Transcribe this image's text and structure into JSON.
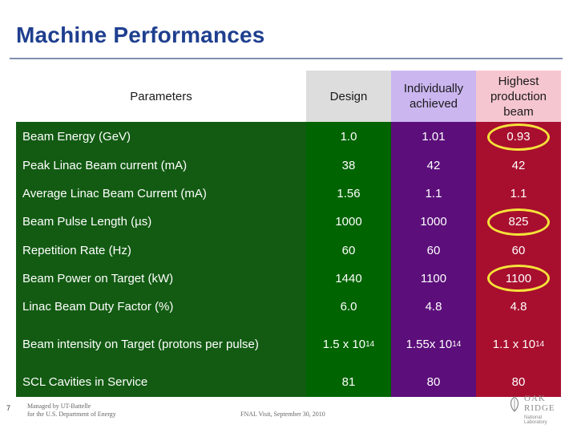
{
  "slide": {
    "title": "Machine Performances",
    "page_number": "7"
  },
  "table": {
    "headers": {
      "parameters": "Parameters",
      "design": "Design",
      "individually": "Individually achieved",
      "highest": "Highest production beam"
    },
    "rows": [
      {
        "param": "Beam Energy (GeV)",
        "design": "1.0",
        "individually": "1.01",
        "highest": "0.93",
        "highlighted": true
      },
      {
        "param": "Peak Linac Beam current (mA)",
        "design": "38",
        "individually": "42",
        "highest": "42",
        "highlighted": false
      },
      {
        "param": "Average Linac Beam Current (mA)",
        "design": "1.56",
        "individually": "1.1",
        "highest": "1.1",
        "highlighted": false
      },
      {
        "param": "Beam Pulse Length (µs)",
        "design": "1000",
        "individually": "1000",
        "highest": "825",
        "highlighted": true
      },
      {
        "param": "Repetition Rate (Hz)",
        "design": "60",
        "individually": "60",
        "highest": "60",
        "highlighted": false
      },
      {
        "param": "Beam Power on Target  (kW)",
        "design": "1440",
        "individually": "1100",
        "highest": "1100",
        "highlighted": true
      },
      {
        "param": "Linac Beam Duty Factor (%)",
        "design": "6.0",
        "individually": "4.8",
        "highest": "4.8",
        "highlighted": false
      },
      {
        "param": "Beam intensity on Target (protons per pulse)",
        "design": "1.5 x 10",
        "design_exp": "14",
        "individually": "1.55x 10",
        "individually_exp": "14",
        "highest": "1.1 x 10",
        "highest_exp": "14",
        "highlighted": false
      },
      {
        "param": "SCL Cavities in Service",
        "design": "81",
        "individually": "80",
        "highest": "80",
        "highlighted": false
      }
    ]
  },
  "footer": {
    "managed_line1": "Managed by UT-Battelle",
    "managed_line2": "for the U.S. Department of Energy",
    "event": "FNAL Visit, September 30, 2010"
  },
  "logo": {
    "word_line1": "OAK",
    "word_line2": "RIDGE",
    "sub": "National Laboratory"
  },
  "colors": {
    "title": "#1f3f8f",
    "parameters_column": "#135b13",
    "design_column": "#006400",
    "individually_column": "#5c0f7a",
    "highest_column": "#a80f2e",
    "highlight_ring": "#f5e23a"
  }
}
